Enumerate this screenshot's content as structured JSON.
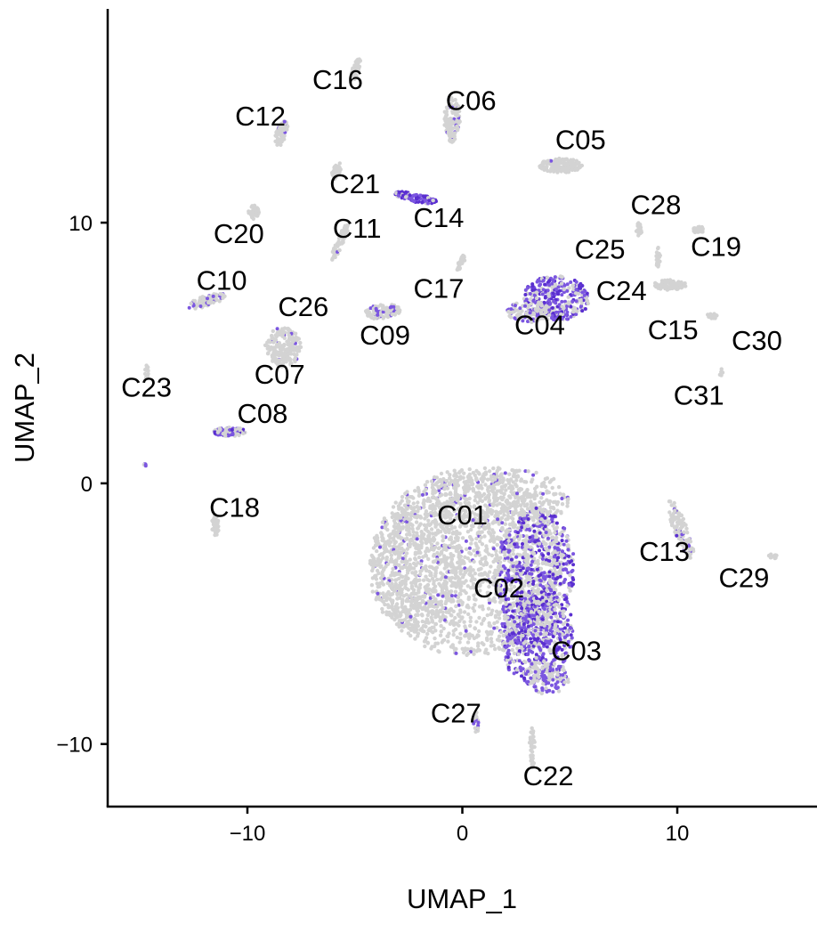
{
  "chart_data": {
    "type": "scatter",
    "title": "",
    "xlabel": "UMAP_1",
    "ylabel": "UMAP_2",
    "xlim": [
      -16.5,
      16.5
    ],
    "ylim": [
      -12.4,
      18.2
    ],
    "xticks": [
      {
        "value": -10,
        "label": "−10"
      },
      {
        "value": 0,
        "label": "0"
      },
      {
        "value": 10,
        "label": "10"
      }
    ],
    "yticks": [
      {
        "value": -10,
        "label": "−10"
      },
      {
        "value": 0,
        "label": "0"
      },
      {
        "value": 10,
        "label": "10"
      }
    ],
    "grid": false,
    "legend": "none",
    "colors": {
      "background_points": "#d3d3d3",
      "highlight_points": "#7b56e0",
      "highlight_dark": "#5a2fd0"
    },
    "clusters": [
      {
        "label": "C01",
        "x": 0.0,
        "y": -1.2
      },
      {
        "label": "C02",
        "x": 1.7,
        "y": -4.0
      },
      {
        "label": "C03",
        "x": 5.3,
        "y": -6.4
      },
      {
        "label": "C04",
        "x": 3.6,
        "y": 6.1
      },
      {
        "label": "C05",
        "x": 5.5,
        "y": 13.2
      },
      {
        "label": "C06",
        "x": 0.4,
        "y": 14.7
      },
      {
        "label": "C07",
        "x": -8.5,
        "y": 4.2
      },
      {
        "label": "C08",
        "x": -9.3,
        "y": 2.7
      },
      {
        "label": "C09",
        "x": -3.6,
        "y": 5.7
      },
      {
        "label": "C10",
        "x": -11.2,
        "y": 7.8
      },
      {
        "label": "C11",
        "x": -4.9,
        "y": 9.8
      },
      {
        "label": "C12",
        "x": -9.4,
        "y": 14.1
      },
      {
        "label": "C13",
        "x": 9.4,
        "y": -2.6
      },
      {
        "label": "C14",
        "x": -1.1,
        "y": 10.2
      },
      {
        "label": "C15",
        "x": 9.8,
        "y": 5.9
      },
      {
        "label": "C16",
        "x": -5.8,
        "y": 15.5
      },
      {
        "label": "C17",
        "x": -1.1,
        "y": 7.5
      },
      {
        "label": "C18",
        "x": -10.6,
        "y": -0.9
      },
      {
        "label": "C19",
        "x": 11.8,
        "y": 9.1
      },
      {
        "label": "C20",
        "x": -10.4,
        "y": 9.6
      },
      {
        "label": "C21",
        "x": -5.0,
        "y": 11.5
      },
      {
        "label": "C22",
        "x": 4.0,
        "y": -11.2
      },
      {
        "label": "C23",
        "x": -14.7,
        "y": 3.7
      },
      {
        "label": "C24",
        "x": 7.4,
        "y": 7.4
      },
      {
        "label": "C25",
        "x": 6.4,
        "y": 9.0
      },
      {
        "label": "C26",
        "x": -7.4,
        "y": 6.8
      },
      {
        "label": "C27",
        "x": -0.3,
        "y": -8.8
      },
      {
        "label": "C28",
        "x": 9.0,
        "y": 10.7
      },
      {
        "label": "C29",
        "x": 13.1,
        "y": -3.6
      },
      {
        "label": "C30",
        "x": 13.7,
        "y": 5.5
      },
      {
        "label": "C31",
        "x": 11.0,
        "y": 3.4
      }
    ]
  }
}
